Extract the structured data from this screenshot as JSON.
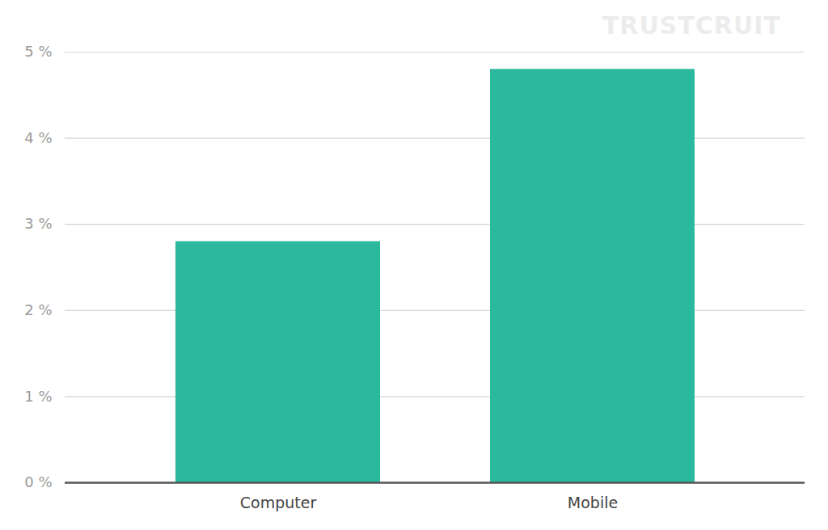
{
  "chart_data": {
    "type": "bar",
    "annotations": [
      "TRUSTCRUIT"
    ],
    "categories": [
      "Computer",
      "Mobile"
    ],
    "values": [
      2.8,
      4.8
    ],
    "color": "#2bb99d",
    "ylim": [
      0,
      5
    ],
    "yticks": [
      {
        "value": 0,
        "label": "0 %"
      },
      {
        "value": 1,
        "label": "1 %"
      },
      {
        "value": 2,
        "label": "2 %"
      },
      {
        "value": 3,
        "label": "3 %"
      },
      {
        "value": 4,
        "label": "4 %"
      },
      {
        "value": 5,
        "label": "5 %"
      }
    ],
    "grid": true
  }
}
